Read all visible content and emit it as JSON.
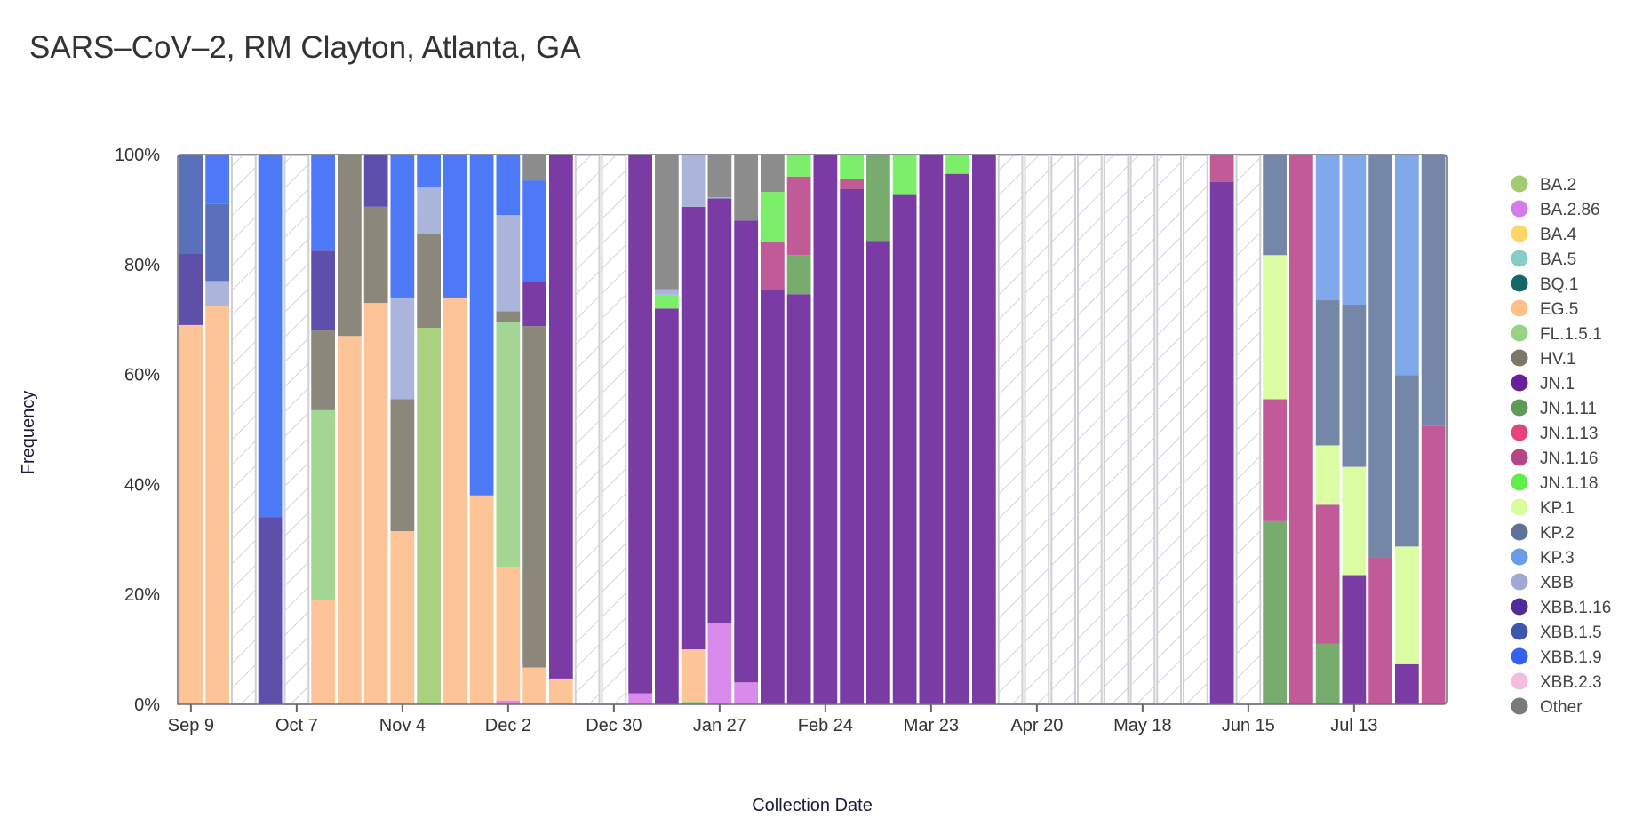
{
  "chart_data": {
    "type": "bar",
    "stacked": true,
    "title": "SARS–CoV–2, RM Clayton, Atlanta, GA",
    "xlabel": "Collection Date",
    "ylabel": "Frequency",
    "ylim": [
      0,
      100
    ],
    "yticks": [
      "0%",
      "20%",
      "40%",
      "60%",
      "80%",
      "100%"
    ],
    "xticks": [
      {
        "label": "Sep 9",
        "week": 0
      },
      {
        "label": "Oct 7",
        "week": 4
      },
      {
        "label": "Nov 4",
        "week": 8
      },
      {
        "label": "Dec 2",
        "week": 12
      },
      {
        "label": "Dec 30",
        "week": 16
      },
      {
        "label": "Jan 27",
        "week": 20
      },
      {
        "label": "Feb 24",
        "week": 24
      },
      {
        "label": "Mar 23",
        "week": 28
      },
      {
        "label": "Apr 20",
        "week": 32
      },
      {
        "label": "May 18",
        "week": 36
      },
      {
        "label": "Jun 15",
        "week": 40
      },
      {
        "label": "Jul 13",
        "week": 44
      }
    ],
    "legend_position": "right",
    "lineages": [
      {
        "name": "BA.2",
        "color": "#a3cb70"
      },
      {
        "name": "BA.2.86",
        "color": "#d57bec"
      },
      {
        "name": "BA.4",
        "color": "#ffd466"
      },
      {
        "name": "BA.5",
        "color": "#86cdc5"
      },
      {
        "name": "BQ.1",
        "color": "#176666"
      },
      {
        "name": "EG.5",
        "color": "#fdc08a"
      },
      {
        "name": "FL.1.5.1",
        "color": "#97d387"
      },
      {
        "name": "HV.1",
        "color": "#7b7868"
      },
      {
        "name": "JN.1",
        "color": "#671f9a"
      },
      {
        "name": "JN.1.11",
        "color": "#5e9c56"
      },
      {
        "name": "JN.1.13",
        "color": "#e2457a"
      },
      {
        "name": "JN.1.16",
        "color": "#b74487"
      },
      {
        "name": "JN.1.18",
        "color": "#60ee4a"
      },
      {
        "name": "KP.1",
        "color": "#dafd9c"
      },
      {
        "name": "KP.2",
        "color": "#5f7399"
      },
      {
        "name": "KP.3",
        "color": "#6b9ce9"
      },
      {
        "name": "XBB",
        "color": "#a0a9d6"
      },
      {
        "name": "XBB.1.16",
        "color": "#4a2f9a"
      },
      {
        "name": "XBB.1.5",
        "color": "#3e56b0"
      },
      {
        "name": "XBB.1.9",
        "color": "#3461f4"
      },
      {
        "name": "XBB.2.3",
        "color": "#f2bde0"
      },
      {
        "name": "Other",
        "color": "#7a7a7a"
      }
    ],
    "weeks": [
      {
        "segments": [
          [
            "EG.5",
            69
          ],
          [
            "XBB.1.16",
            13
          ],
          [
            "XBB.1.5",
            18
          ]
        ]
      },
      {
        "segments": [
          [
            "EG.5",
            72.5
          ],
          [
            "XBB",
            4.5
          ],
          [
            "XBB.1.5",
            14
          ],
          [
            "XBB.1.9",
            9
          ]
        ]
      },
      {
        "no_data": true
      },
      {
        "segments": [
          [
            "XBB.1.16",
            34
          ],
          [
            "XBB.1.9",
            66
          ]
        ]
      },
      {
        "no_data": true
      },
      {
        "segments": [
          [
            "EG.5",
            19
          ],
          [
            "FL.1.5.1",
            34.5
          ],
          [
            "HV.1",
            14.5
          ],
          [
            "XBB.1.16",
            14.5
          ],
          [
            "XBB.1.9",
            17.5
          ]
        ]
      },
      {
        "segments": [
          [
            "EG.5",
            67
          ],
          [
            "HV.1",
            33
          ]
        ]
      },
      {
        "segments": [
          [
            "EG.5",
            73
          ],
          [
            "HV.1",
            17.5
          ],
          [
            "XBB.1.16",
            9.5
          ]
        ]
      },
      {
        "segments": [
          [
            "EG.5",
            31.5
          ],
          [
            "HV.1",
            24
          ],
          [
            "XBB",
            18.5
          ],
          [
            "XBB.1.9",
            26
          ]
        ]
      },
      {
        "segments": [
          [
            "BA.2",
            68.5
          ],
          [
            "HV.1",
            17
          ],
          [
            "XBB",
            8.5
          ],
          [
            "XBB.1.9",
            6
          ]
        ]
      },
      {
        "segments": [
          [
            "EG.5",
            74
          ],
          [
            "XBB.1.9",
            26
          ]
        ]
      },
      {
        "segments": [
          [
            "EG.5",
            38
          ],
          [
            "XBB.1.9",
            62
          ]
        ]
      },
      {
        "segments": [
          [
            "BA.2.86",
            0.7
          ],
          [
            "EG.5",
            24.3
          ],
          [
            "FL.1.5.1",
            44.5
          ],
          [
            "HV.1",
            2
          ],
          [
            "XBB",
            17.5
          ],
          [
            "XBB.1.9",
            11
          ]
        ]
      },
      {
        "segments": [
          [
            "EG.5",
            6.7
          ],
          [
            "HV.1",
            62.1
          ],
          [
            "JN.1",
            8.2
          ],
          [
            "XBB.1.9",
            18.3
          ],
          [
            "Other",
            4.7
          ]
        ]
      },
      {
        "segments": [
          [
            "EG.5",
            4.7
          ],
          [
            "JN.1",
            95.3
          ]
        ]
      },
      {
        "no_data": true
      },
      {
        "no_data": true
      },
      {
        "segments": [
          [
            "BA.2.86",
            2
          ],
          [
            "JN.1",
            98
          ]
        ]
      },
      {
        "segments": [
          [
            "JN.1",
            72
          ],
          [
            "JN.1.18",
            2.5
          ],
          [
            "XBB",
            1
          ],
          [
            "Other",
            24.5
          ]
        ]
      },
      {
        "segments": [
          [
            "BA.2",
            0.5
          ],
          [
            "EG.5",
            9.5
          ],
          [
            "JN.1",
            80.5
          ],
          [
            "XBB",
            9.5
          ]
        ]
      },
      {
        "segments": [
          [
            "BA.2.86",
            14.7
          ],
          [
            "JN.1",
            77.3
          ],
          [
            "XBB",
            0.2
          ],
          [
            "Other",
            7.8
          ]
        ]
      },
      {
        "segments": [
          [
            "BA.2.86",
            4
          ],
          [
            "JN.1",
            84
          ],
          [
            "Other",
            12
          ]
        ]
      },
      {
        "segments": [
          [
            "JN.1",
            75.3
          ],
          [
            "JN.1.16",
            8.9
          ],
          [
            "JN.1.18",
            9
          ],
          [
            "Other",
            6.8
          ]
        ]
      },
      {
        "segments": [
          [
            "JN.1",
            74.6
          ],
          [
            "JN.1.11",
            7.1
          ],
          [
            "JN.1.16",
            14.3
          ],
          [
            "JN.1.18",
            4
          ]
        ]
      },
      {
        "segments": [
          [
            "JN.1",
            100
          ]
        ]
      },
      {
        "segments": [
          [
            "JN.1",
            93.7
          ],
          [
            "JN.1.16",
            1.8
          ],
          [
            "JN.1.18",
            4.5
          ]
        ]
      },
      {
        "segments": [
          [
            "JN.1",
            84.3
          ],
          [
            "JN.1.11",
            15.7
          ]
        ]
      },
      {
        "segments": [
          [
            "JN.1",
            92.8
          ],
          [
            "JN.1.18",
            7.2
          ]
        ]
      },
      {
        "segments": [
          [
            "JN.1",
            100
          ]
        ]
      },
      {
        "segments": [
          [
            "JN.1",
            96.5
          ],
          [
            "JN.1.18",
            3.5
          ]
        ]
      },
      {
        "segments": [
          [
            "JN.1",
            100
          ]
        ]
      },
      {
        "no_data": true
      },
      {
        "no_data": true
      },
      {
        "no_data": true
      },
      {
        "no_data": true
      },
      {
        "no_data": true
      },
      {
        "no_data": true
      },
      {
        "no_data": true
      },
      {
        "no_data": true
      },
      {
        "segments": [
          [
            "JN.1",
            95
          ],
          [
            "JN.1.16",
            5
          ]
        ]
      },
      {
        "no_data": true
      },
      {
        "segments": [
          [
            "JN.1.11",
            33.3
          ],
          [
            "JN.1.16",
            22.2
          ],
          [
            "KP.1",
            26.2
          ],
          [
            "KP.2",
            18.3
          ]
        ]
      },
      {
        "segments": [
          [
            "JN.1.16",
            100
          ]
        ]
      },
      {
        "segments": [
          [
            "JN.1.11",
            11
          ],
          [
            "JN.1.16",
            25.3
          ],
          [
            "KP.1",
            10.8
          ],
          [
            "KP.2",
            26.4
          ],
          [
            "KP.3",
            26.5
          ]
        ]
      },
      {
        "segments": [
          [
            "JN.1",
            23.5
          ],
          [
            "KP.1",
            19.7
          ],
          [
            "KP.2",
            29.5
          ],
          [
            "KP.3",
            27.3
          ]
        ]
      },
      {
        "segments": [
          [
            "JN.1.16",
            26.8
          ],
          [
            "KP.2",
            73.2
          ]
        ]
      },
      {
        "segments": [
          [
            "JN.1",
            7.3
          ],
          [
            "KP.1",
            21.4
          ],
          [
            "KP.2",
            31.2
          ],
          [
            "KP.3",
            40.1
          ]
        ]
      },
      {
        "segments": [
          [
            "JN.1.16",
            50.6
          ],
          [
            "KP.2",
            49.4
          ]
        ]
      }
    ]
  },
  "bar_fill_colors": {
    "BA.2": "#a9d17f",
    "BA.2.86": "#d98bec",
    "EG.5": "#fdc597",
    "FL.1.5.1": "#a3d693",
    "HV.1": "#8b887b",
    "JN.1": "#7a3ba4",
    "JN.1.11": "#78ab6e",
    "JN.1.16": "#c05b97",
    "JN.1.18": "#7bef69",
    "KP.1": "#dbfca3",
    "KP.2": "#7587a8",
    "KP.3": "#7fa9eb",
    "XBB": "#abb4db",
    "XBB.1.16": "#5e4fab",
    "XBB.1.5": "#5a70bc",
    "XBB.1.9": "#4d78f6",
    "Other": "#8c8c8c"
  }
}
